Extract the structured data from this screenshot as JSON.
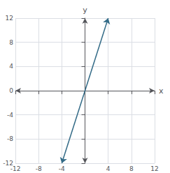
{
  "chart_data": {
    "type": "line",
    "x": [
      -4,
      4
    ],
    "values": [
      -12,
      12
    ],
    "color": "#336b87",
    "xlim": [
      -12,
      12
    ],
    "ylim": [
      -12,
      12
    ],
    "xticks": [
      -12,
      -8,
      -4,
      4,
      8,
      12
    ],
    "yticks": [
      -12,
      -8,
      -4,
      0,
      4,
      8,
      12
    ],
    "xlabel": "x",
    "ylabel": "y",
    "grid": true
  }
}
